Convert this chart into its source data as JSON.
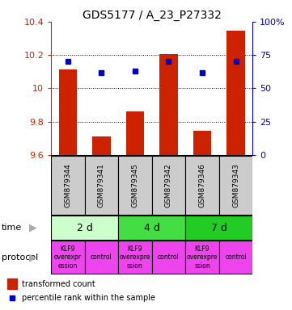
{
  "title": "GDS5177 / A_23_P27332",
  "samples": [
    "GSM879344",
    "GSM879341",
    "GSM879345",
    "GSM879342",
    "GSM879346",
    "GSM879343"
  ],
  "transformed_counts": [
    10.115,
    9.71,
    9.86,
    10.205,
    9.745,
    10.345
  ],
  "percentile_ranks": [
    70,
    62,
    63,
    70,
    62,
    70
  ],
  "bar_bottom": 9.6,
  "ylim_left": [
    9.6,
    10.4
  ],
  "ylim_right": [
    0,
    100
  ],
  "yticks_left": [
    9.6,
    9.8,
    10.0,
    10.2,
    10.4
  ],
  "yticks_right": [
    0,
    25,
    50,
    75,
    100
  ],
  "bar_color": "#cc2200",
  "dot_color": "#0000cc",
  "time_groups": [
    {
      "label": "2 d",
      "start": 0,
      "end": 2,
      "color": "#ccffcc"
    },
    {
      "label": "4 d",
      "start": 2,
      "end": 4,
      "color": "#44dd44"
    },
    {
      "label": "7 d",
      "start": 4,
      "end": 6,
      "color": "#22cc22"
    }
  ],
  "protocol_groups": [
    {
      "label": "KLF9\noverexpr\nession",
      "start": 0,
      "end": 1,
      "color": "#ee44ee"
    },
    {
      "label": "control",
      "start": 1,
      "end": 2,
      "color": "#ee44ee"
    },
    {
      "label": "KLF9\noverexpre\nssion",
      "start": 2,
      "end": 3,
      "color": "#ee44ee"
    },
    {
      "label": "control",
      "start": 3,
      "end": 4,
      "color": "#ee44ee"
    },
    {
      "label": "KLF9\noverexpre\nssion",
      "start": 4,
      "end": 5,
      "color": "#ee44ee"
    },
    {
      "label": "control",
      "start": 5,
      "end": 6,
      "color": "#ee44ee"
    }
  ],
  "legend_bar_color": "#cc2200",
  "legend_dot_color": "#0000cc",
  "legend_bar_label": "transformed count",
  "legend_dot_label": "percentile rank within the sample",
  "time_label": "time",
  "protocol_label": "protocol",
  "sample_box_color": "#cccccc",
  "sample_text_color": "#000000",
  "left_axis_color": "#cc2200",
  "right_axis_color": "#0000cc",
  "arrow_color": "#aaaaaa"
}
